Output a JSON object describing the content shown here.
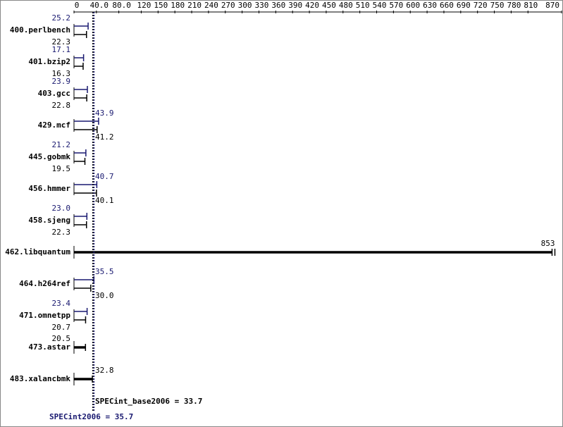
{
  "chart_data": {
    "type": "errorbar",
    "categories": [
      "400.perlbench",
      "401.bzip2",
      "403.gcc",
      "429.mcf",
      "445.gobmk",
      "456.hmmer",
      "458.sjeng",
      "462.libquantum",
      "464.h264ref",
      "471.omnetpp",
      "473.astar",
      "483.xalancbmk"
    ],
    "series": [
      {
        "color": "#000000",
        "values": [
          22.3,
          16.3,
          22.8,
          41.2,
          19.5,
          40.1,
          22.3,
          853,
          30.0,
          20.7,
          20.5,
          32.8
        ],
        "value_labels": [
          "22.3",
          "16.3",
          "22.8",
          "41.2",
          "19.5",
          "40.1",
          "22.3",
          "853",
          "30.0",
          "20.7",
          "20.5",
          "32.8"
        ]
      },
      {
        "color": "#191970",
        "values": [
          25.2,
          17.1,
          23.9,
          43.9,
          21.2,
          40.7,
          23.0,
          null,
          35.5,
          23.4,
          null,
          null
        ],
        "value_labels": [
          "25.2",
          "17.1",
          "23.9",
          "43.9",
          "21.2",
          "40.7",
          "23.0",
          null,
          "35.5",
          "23.4",
          null,
          null
        ]
      }
    ],
    "xlim": [
      0,
      870
    ],
    "xticks": [
      0,
      {
        "value": 40,
        "label": "40.0"
      },
      {
        "value": 80,
        "label": "80.0"
      },
      120,
      150,
      180,
      210,
      240,
      270,
      300,
      330,
      360,
      390,
      420,
      450,
      480,
      510,
      540,
      570,
      600,
      630,
      660,
      690,
      720,
      750,
      780,
      810,
      870
    ],
    "summary": [
      {
        "label": "SPECint_base2006 = 33.7",
        "value": 33.7,
        "color": "#000000"
      },
      {
        "label": "SPECint2006 = 35.7",
        "value": 35.7,
        "color": "#191970"
      }
    ]
  }
}
